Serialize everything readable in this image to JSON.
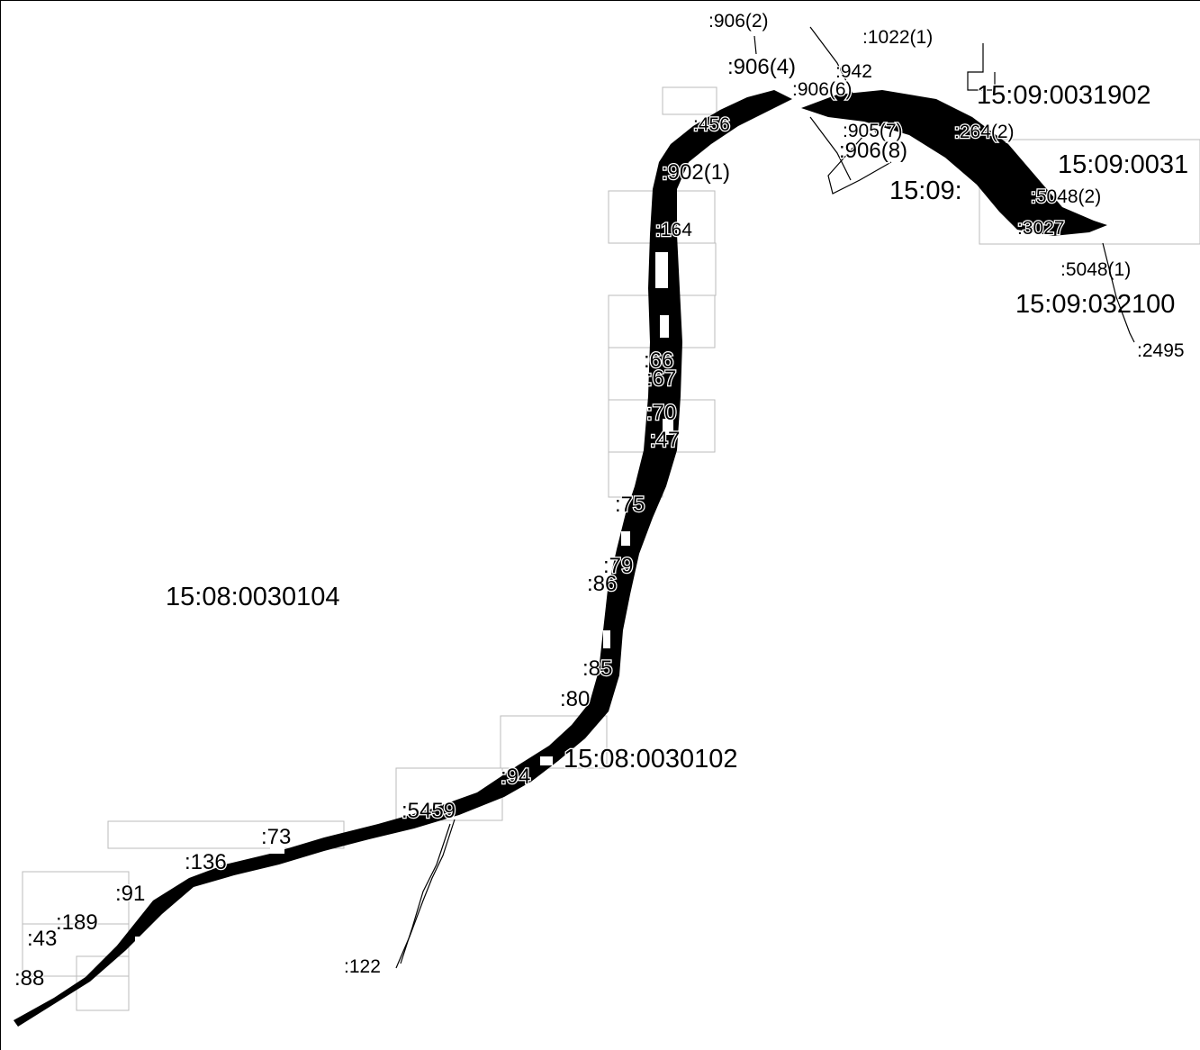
{
  "map": {
    "labels": {
      "l_15_08_0030104": "15:08:0030104",
      "l_15_08_0030102": "15:08:0030102",
      "l_15_09_0031902": "15:09:0031902",
      "l_15_09_032100": "15:09:032100",
      "l_15_09_left": "15:09:",
      "l_15_09_right": "15:09:0031",
      "l_906_2": ":906(2)",
      "l_1022_1": ":1022(1)",
      "l_906_4": ":906(4)",
      "l_942": ":942",
      "l_906_6": ":906(6)",
      "l_905_7": ":905(7)",
      "l_906_8": ":906(8)",
      "l_264_2": ":264(2)",
      "l_902_1": ":902(1)",
      "l_5048_1": ":5048(1)",
      "l_2495": ":2495",
      "l_164": ":164",
      "l_3027": ":3027",
      "l_5048_2": ":5048(2)",
      "l_456": ":456",
      "l_66": ":66",
      "l_67": ":67",
      "l_70": ":70",
      "l_47": ":47",
      "l_75": ":75",
      "l_79": ":79",
      "l_86": ":86",
      "l_85": ":85",
      "l_80": ":80",
      "l_94": ":94",
      "l_5459": ":5459",
      "l_73": ":73",
      "l_136": ":136",
      "l_189": ":189",
      "l_91": ":91",
      "l_122": ":122",
      "l_88": ":88",
      "l_43": ":43"
    }
  }
}
